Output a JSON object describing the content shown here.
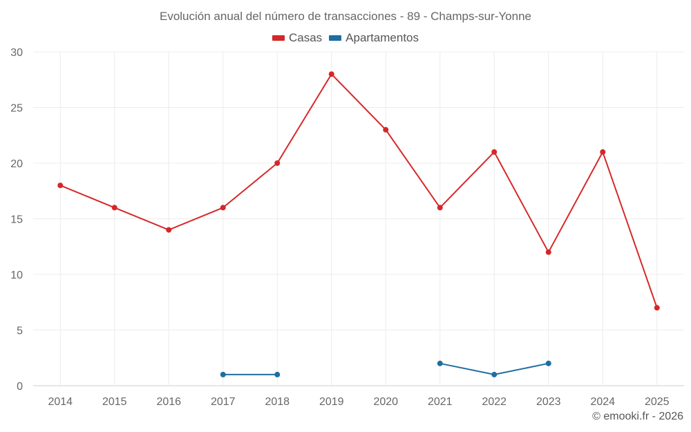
{
  "chart_data": {
    "type": "line",
    "title": "Evolución anual del número de transacciones - 89 - Champs-sur-Yonne",
    "xlabel": "",
    "ylabel": "",
    "categories": [
      "2014",
      "2015",
      "2016",
      "2017",
      "2018",
      "2019",
      "2020",
      "2021",
      "2022",
      "2023",
      "2024",
      "2025"
    ],
    "ylim": [
      0,
      30
    ],
    "yticks": [
      0,
      5,
      10,
      15,
      20,
      25,
      30
    ],
    "grid": true,
    "legend_position": "top-center",
    "series": [
      {
        "name": "Casas",
        "color": "#d62728",
        "values": [
          18,
          16,
          14,
          16,
          20,
          28,
          23,
          16,
          21,
          12,
          21,
          7
        ]
      },
      {
        "name": "Apartamentos",
        "color": "#1f6ea0",
        "values": [
          null,
          null,
          null,
          1,
          1,
          null,
          null,
          2,
          1,
          2,
          null,
          null
        ]
      }
    ]
  },
  "credit": "© emooki.fr - 2026"
}
